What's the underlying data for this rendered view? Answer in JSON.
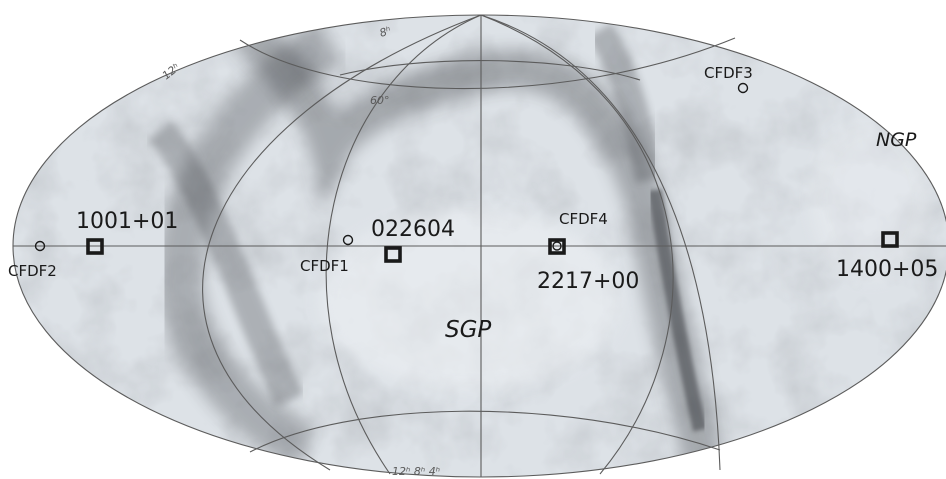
{
  "map": {
    "projection": "Aitoff (all-sky)",
    "background": "grey-scale dust emission",
    "poles": {
      "ngp": "NGP",
      "sgp": "SGP"
    },
    "grid_labels": {
      "ra_top": "8ʰ",
      "ra_left": "12ʰ",
      "dec_top": "60°",
      "ra_bottom": "12ʰ 8ʰ 4ʰ"
    },
    "survey_fields": [
      {
        "name": "1001+01",
        "marker": "square"
      },
      {
        "name": "022604",
        "marker": "square"
      },
      {
        "name": "2217+00",
        "marker": "square"
      },
      {
        "name": "1400+05",
        "marker": "square"
      }
    ],
    "comparison_fields": [
      {
        "name": "CFDF1",
        "marker": "circle"
      },
      {
        "name": "CFDF2",
        "marker": "circle"
      },
      {
        "name": "CFDF3",
        "marker": "circle"
      },
      {
        "name": "CFDF4",
        "marker": "circle"
      }
    ],
    "colors": {
      "sky_light": "#dadfe4",
      "sky_dark": "#3f4245",
      "markers": "#1a1a1a"
    }
  }
}
